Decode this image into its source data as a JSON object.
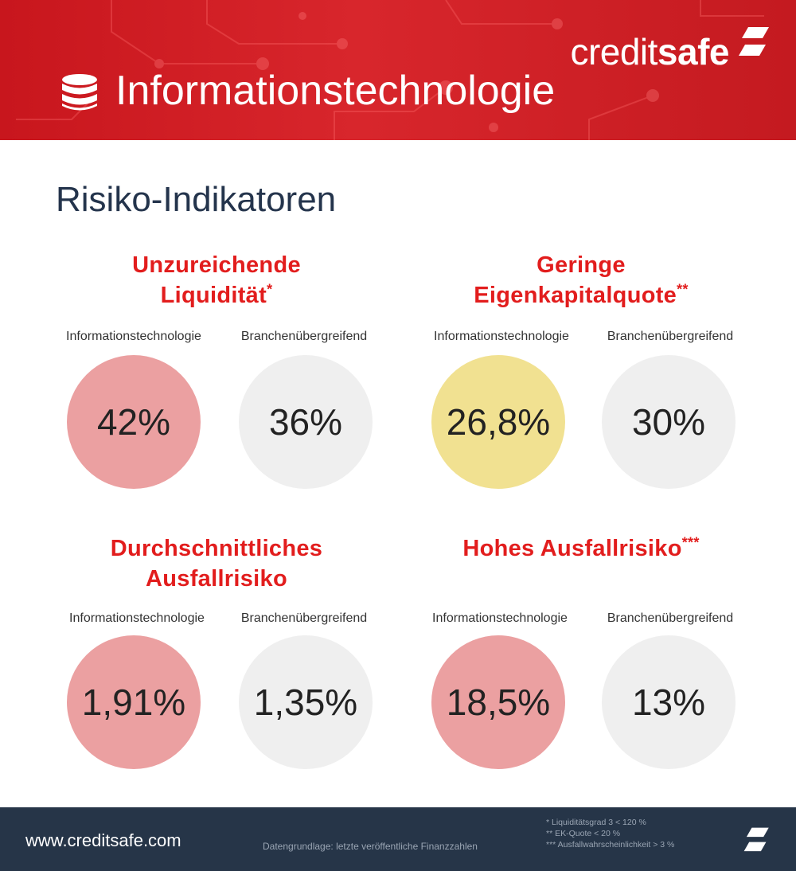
{
  "header": {
    "brand_light": "credit",
    "brand_bold": "safe",
    "title": "Informationstechnologie"
  },
  "section_title": "Risiko-Indikatoren",
  "indicators": [
    {
      "title_line1": "Unzureichende",
      "title_line2": "Liquidität",
      "marker": "*",
      "label_left": "Informationstechnologie",
      "label_right": "Branchenübergreifend",
      "value_left": "42%",
      "value_right": "36%",
      "color_left": "#eba0a1"
    },
    {
      "title_line1": "Geringe",
      "title_line2": "Eigenkapitalquote",
      "marker": "**",
      "label_left": "Informationstechnologie",
      "label_right": "Branchenübergreifend",
      "value_left": "26,8%",
      "value_right": "30%",
      "color_left": "#f1e191"
    },
    {
      "title_line1": "Durchschnittliches",
      "title_line2": "Ausfallrisiko",
      "marker": "",
      "label_left": "Informationstechnologie",
      "label_right": "Branchenübergreifend",
      "value_left": "1,91%",
      "value_right": "1,35%",
      "color_left": "#eba0a1"
    },
    {
      "title_line1": "Hohes Ausfallrisiko",
      "title_line2": "",
      "marker": "***",
      "label_left": "Informationstechnologie",
      "label_right": "Branchenübergreifend",
      "value_left": "18,5%",
      "value_right": "13%",
      "color_left": "#eba0a1"
    }
  ],
  "footer": {
    "url": "www.creditsafe.com",
    "source": "Datengrundlage: letzte veröffentliche Finanzzahlen",
    "notes": [
      "* Liquiditätsgrad 3 < 120 %",
      "** EK-Quote < 20 %",
      "*** Ausfallwahrscheinlichkeit > 3 %"
    ]
  },
  "colors": {
    "header_red": "#d8262c",
    "title_red": "#e21d1d",
    "neutral_circle": "#efefef",
    "footer_navy": "#263548"
  },
  "icons": {
    "header": "database-icon",
    "brand": "creditsafe-logo-mark"
  }
}
